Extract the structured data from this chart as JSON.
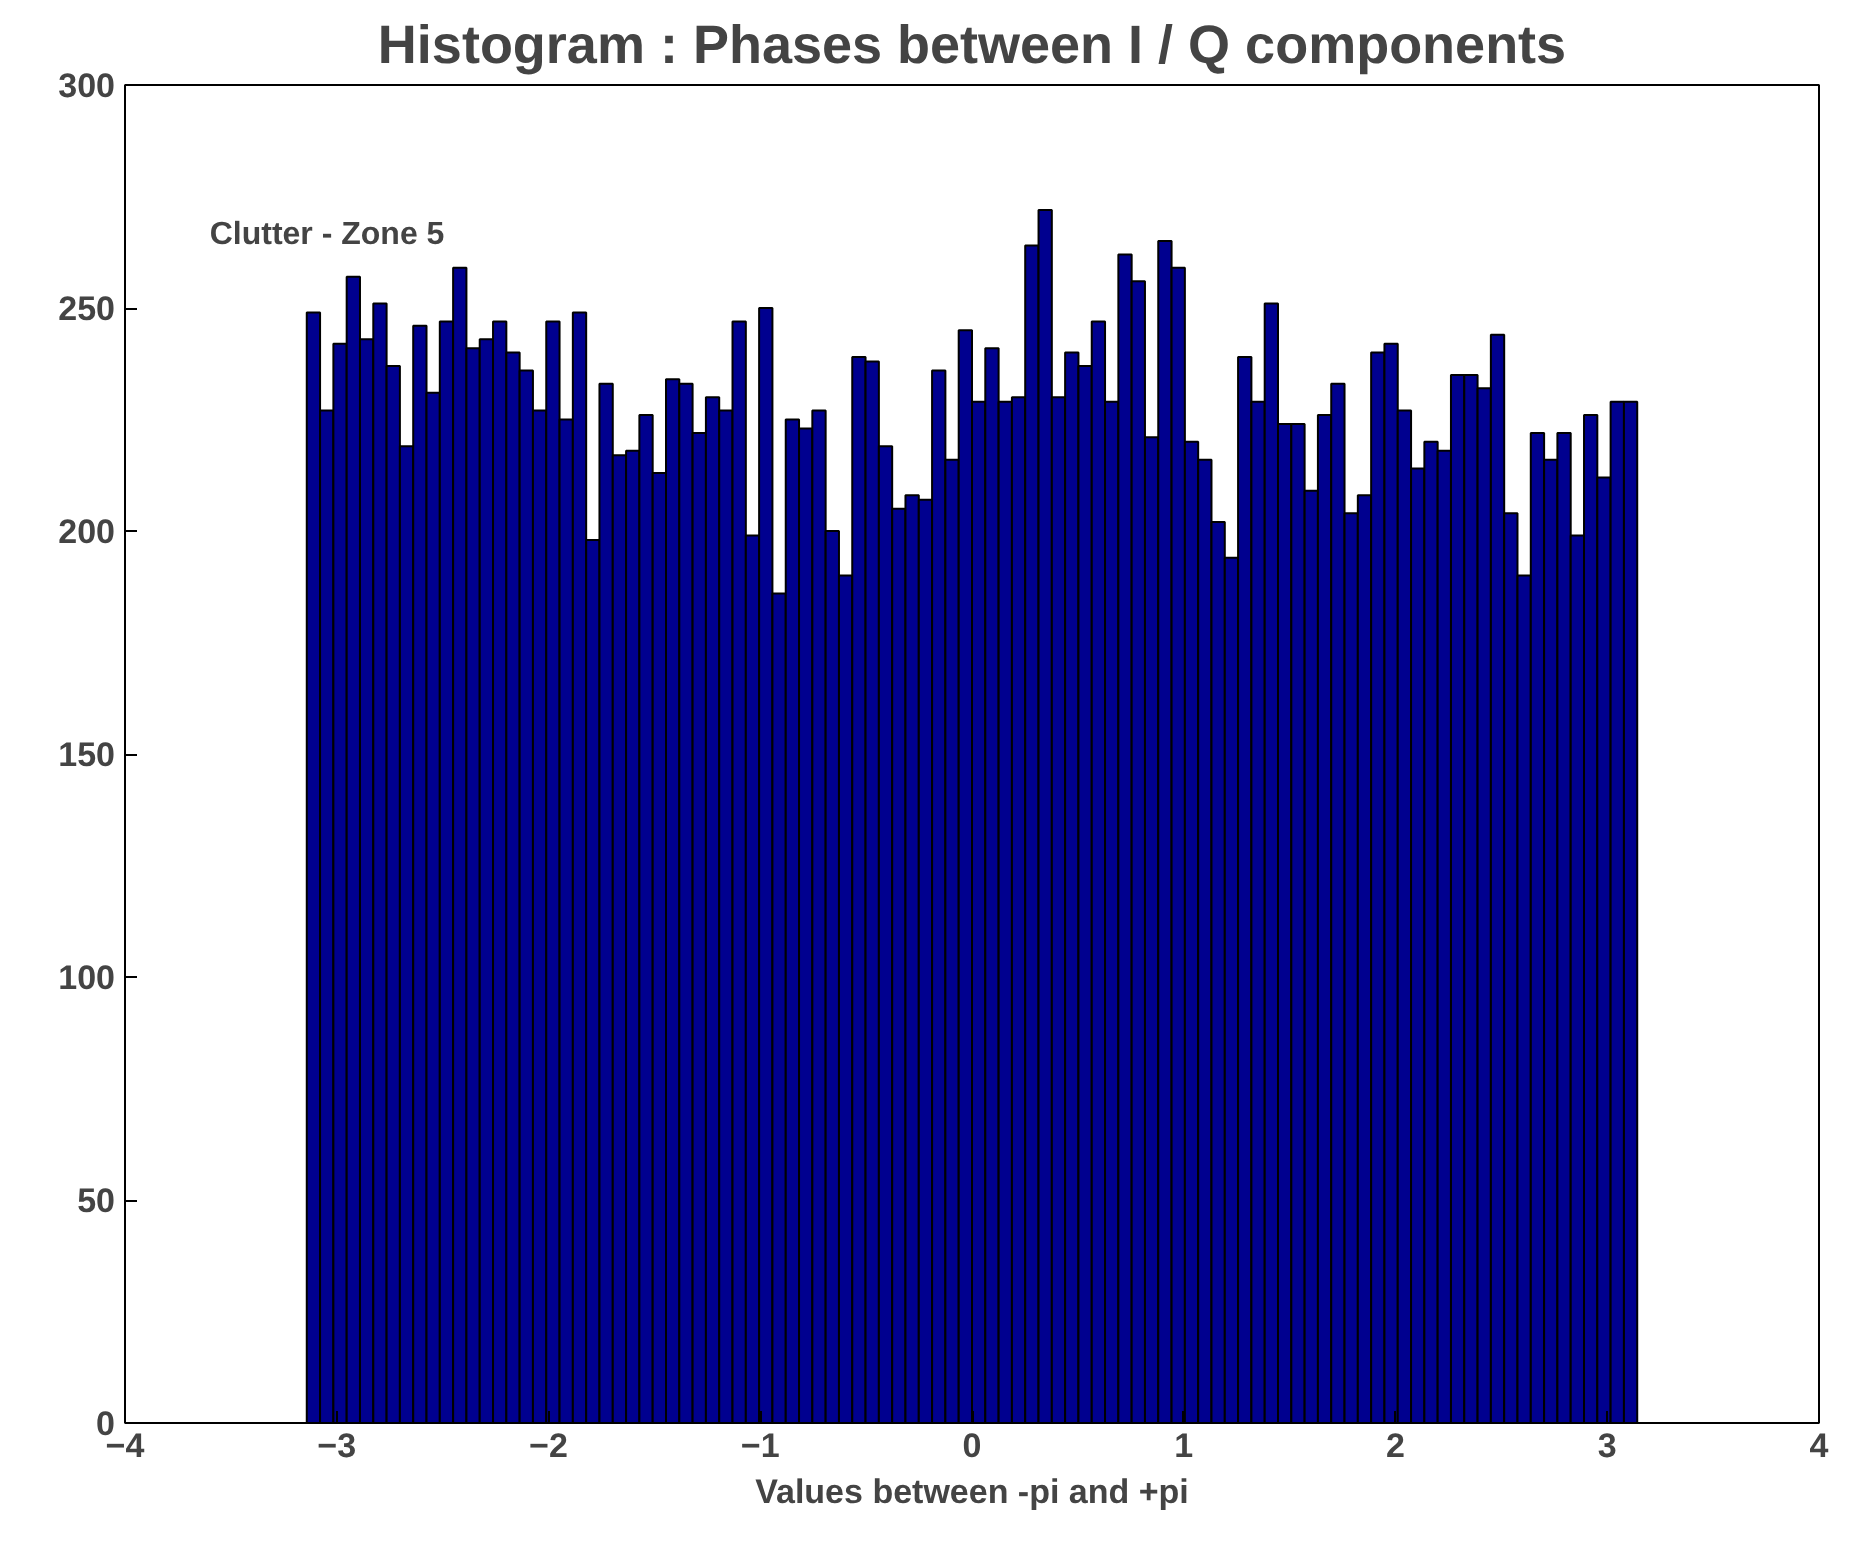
{
  "chart_data": {
    "type": "histogram",
    "title": "Histogram : Phases between I / Q components",
    "xlabel": "Values between -pi and +pi",
    "annotations": [
      "Clutter - Zone 5"
    ],
    "bins": [
      -3.1416,
      -3.0788,
      -3.0159,
      -2.9531,
      -2.8903,
      -2.8274,
      -2.7646,
      -2.7018,
      -2.6389,
      -2.5761,
      -2.5133,
      -2.4504,
      -2.3876,
      -2.3248,
      -2.2619,
      -2.1991,
      -2.1363,
      -2.0735,
      -2.0106,
      -1.9478,
      -1.885,
      -1.8221,
      -1.7593,
      -1.6965,
      -1.6336,
      -1.5708,
      -1.508,
      -1.4451,
      -1.3823,
      -1.3195,
      -1.2566,
      -1.1938,
      -1.131,
      -1.0681,
      -1.0053,
      -0.9425,
      -0.8796,
      -0.8168,
      -0.754,
      -0.6912,
      -0.6283,
      -0.5655,
      -0.5027,
      -0.4398,
      -0.377,
      -0.3142,
      -0.2513,
      -0.1885,
      -0.1257,
      -0.0628,
      0,
      0.0628,
      0.1257,
      0.1885,
      0.2513,
      0.3142,
      0.377,
      0.4398,
      0.5027,
      0.5655,
      0.6283,
      0.6912,
      0.754,
      0.8168,
      0.8796,
      0.9425,
      1.0053,
      1.0681,
      1.131,
      1.1938,
      1.2566,
      1.3195,
      1.3823,
      1.4451,
      1.508,
      1.5708,
      1.6336,
      1.6965,
      1.7593,
      1.8221,
      1.885,
      1.9478,
      2.0106,
      2.0735,
      2.1363,
      2.1991,
      2.2619,
      2.3248,
      2.3876,
      2.4504,
      2.5133,
      2.5761,
      2.6389,
      2.7018,
      2.7646,
      2.8274,
      2.8903,
      2.9531,
      3.0159,
      3.0788,
      3.1416
    ],
    "values": [
      249,
      227,
      242,
      257,
      243,
      251,
      237,
      219,
      246,
      231,
      247,
      259,
      241,
      243,
      247,
      240,
      236,
      227,
      247,
      225,
      249,
      198,
      233,
      217,
      218,
      226,
      213,
      234,
      233,
      222,
      230,
      227,
      247,
      199,
      250,
      186,
      225,
      223,
      227,
      200,
      190,
      239,
      238,
      219,
      205,
      208,
      207,
      236,
      216,
      245,
      229,
      241,
      229,
      230,
      264,
      272,
      230,
      240,
      237,
      247,
      229,
      262,
      256,
      221,
      265,
      259,
      220,
      216,
      202,
      194,
      239,
      229,
      251,
      224,
      224,
      209,
      226,
      233,
      204,
      208,
      240,
      242,
      227,
      214,
      220,
      218,
      235,
      235,
      232,
      244,
      204,
      190,
      222,
      216,
      222,
      199,
      226,
      212,
      229,
      229
    ],
    "color": "#00008f",
    "xlim": [
      -4,
      4
    ],
    "ylim": [
      0,
      300
    ],
    "xticks": [
      -4,
      -3,
      -2,
      -1,
      0,
      1,
      2,
      3,
      4
    ],
    "yticks": [
      0,
      50,
      100,
      150,
      200,
      250,
      300
    ],
    "grid": false
  }
}
